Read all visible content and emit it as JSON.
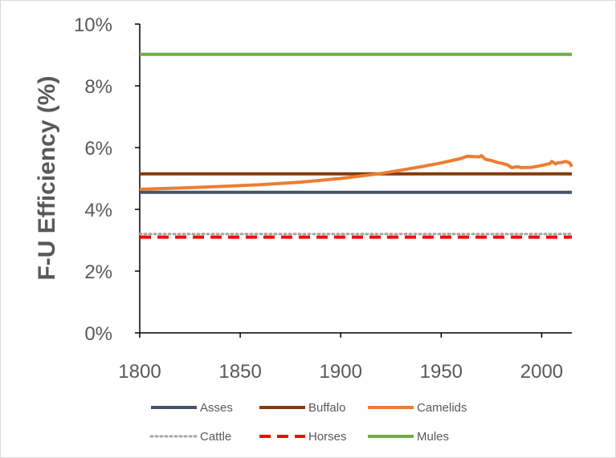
{
  "chart_data": {
    "type": "line",
    "title": "",
    "xlabel": "",
    "ylabel": "F-U Efficiency (%)",
    "xlim": [
      1800,
      2015
    ],
    "ylim": [
      0,
      10
    ],
    "x_ticks": [
      1800,
      1850,
      1900,
      1950,
      2000
    ],
    "y_ticks": [
      0,
      2,
      4,
      6,
      8,
      10
    ],
    "y_tick_labels": [
      "0%",
      "2%",
      "4%",
      "6%",
      "8%",
      "10%"
    ],
    "x_tick_labels": [
      "1800",
      "1850",
      "1900",
      "1950",
      "2000"
    ],
    "grid": false,
    "legend_position": "bottom",
    "series": [
      {
        "name": "Asses",
        "color": "#44546a",
        "style": "solid",
        "x": [
          1800,
          2015
        ],
        "y": [
          4.55,
          4.55
        ]
      },
      {
        "name": "Buffalo",
        "color": "#843c0c",
        "style": "solid",
        "x": [
          1800,
          2015
        ],
        "y": [
          5.15,
          5.15
        ]
      },
      {
        "name": "Camelids",
        "color": "#ed7d31",
        "style": "solid",
        "x": [
          1800,
          1820,
          1840,
          1860,
          1880,
          1900,
          1920,
          1940,
          1950,
          1960,
          1963,
          1966,
          1969,
          1970,
          1972,
          1975,
          1978,
          1980,
          1983,
          1985,
          1988,
          1990,
          1995,
          2000,
          2004,
          2005,
          2007,
          2008,
          2010,
          2012,
          2014,
          2015
        ],
        "y": [
          4.65,
          4.69,
          4.74,
          4.8,
          4.88,
          5.0,
          5.16,
          5.38,
          5.5,
          5.65,
          5.72,
          5.71,
          5.7,
          5.74,
          5.62,
          5.58,
          5.52,
          5.49,
          5.44,
          5.35,
          5.38,
          5.35,
          5.36,
          5.42,
          5.48,
          5.55,
          5.47,
          5.51,
          5.52,
          5.55,
          5.5,
          5.38
        ]
      },
      {
        "name": "Cattle",
        "color": "#a5a5a5",
        "style": "dotted",
        "x": [
          1800,
          2015
        ],
        "y": [
          3.2,
          3.2
        ]
      },
      {
        "name": "Horses",
        "color": "#ff0000",
        "style": "dashed",
        "x": [
          1800,
          2015
        ],
        "y": [
          3.1,
          3.1
        ]
      },
      {
        "name": "Mules",
        "color": "#70ad47",
        "style": "solid",
        "x": [
          1800,
          2015
        ],
        "y": [
          9.02,
          9.02
        ]
      }
    ]
  }
}
